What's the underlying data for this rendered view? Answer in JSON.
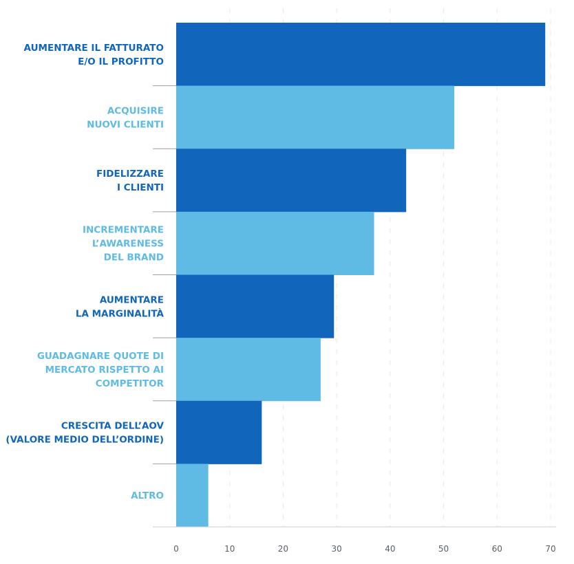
{
  "colors": {
    "dark": "#1166bb",
    "light": "#5fbbe3",
    "grid": "#e8e8ee",
    "axis": "#cccccc",
    "tick_text": "#555f6b"
  },
  "chart_data": {
    "type": "bar",
    "orientation": "horizontal",
    "title": "",
    "xlabel": "",
    "ylabel": "",
    "xlim": [
      0,
      70
    ],
    "x_ticks": [
      0,
      10,
      20,
      30,
      40,
      50,
      60,
      70
    ],
    "grid": "vertical dashed",
    "categories": [
      [
        "AUMENTARE IL FATTURATO",
        "E/O IL PROFITTO"
      ],
      [
        "ACQUISIRE",
        "NUOVI CLIENTI"
      ],
      [
        "FIDELIZZARE",
        "I CLIENTI"
      ],
      [
        "INCREMENTARE",
        "L’AWARENESS",
        "DEL BRAND"
      ],
      [
        "AUMENTARE",
        "LA MARGINALITÀ"
      ],
      [
        "GUADAGNARE QUOTE DI",
        "MERCATO RISPETTO AI",
        "COMPETITOR"
      ],
      [
        "CRESCITA DELL’AOV",
        "(VALORE MEDIO DELL’ORDINE)"
      ],
      [
        "ALTRO"
      ]
    ],
    "values": [
      69,
      52,
      43,
      37,
      29.5,
      27,
      16,
      6
    ],
    "bar_colors": [
      "dark",
      "light",
      "dark",
      "light",
      "dark",
      "light",
      "dark",
      "light"
    ]
  }
}
